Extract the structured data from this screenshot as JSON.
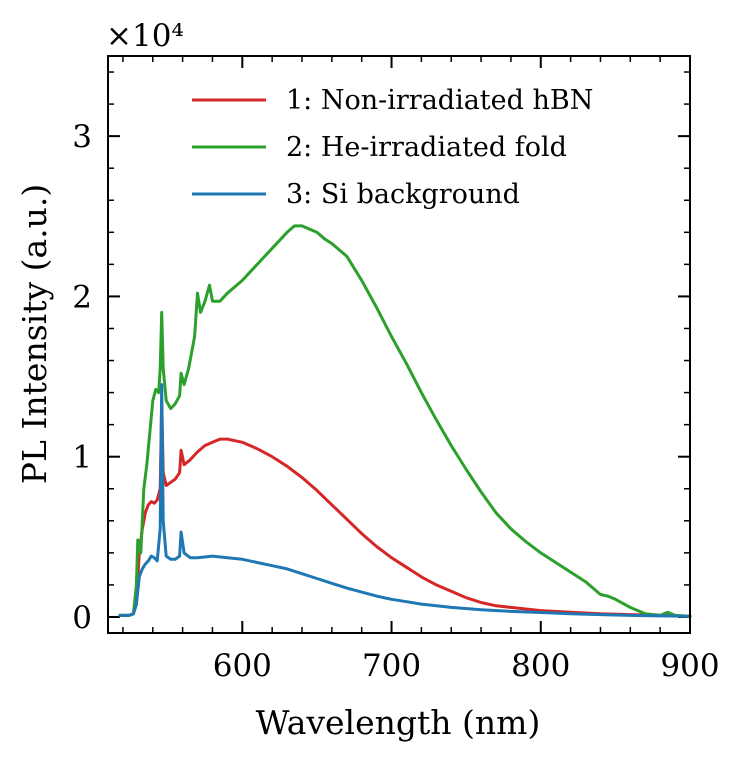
{
  "chart_data": {
    "type": "line",
    "xlabel": "Wavelength (nm)",
    "ylabel": "PL Intensity (a.u.)",
    "multiplier_label": "×10⁴",
    "xlim": [
      510,
      900
    ],
    "ylim": [
      -0.1,
      3.5
    ],
    "x_ticks": [
      600,
      700,
      800,
      900
    ],
    "y_ticks": [
      0,
      1,
      2,
      3
    ],
    "x_minor_step": 20,
    "y_minor_step": 0.2,
    "legend_position": "top-right",
    "series": [
      {
        "name": "1: Non-irradiated hBN",
        "color": "#d62728",
        "points": [
          [
            518,
            0.01
          ],
          [
            524,
            0.01
          ],
          [
            527,
            0.02
          ],
          [
            529,
            0.08
          ],
          [
            531,
            0.4
          ],
          [
            533,
            0.55
          ],
          [
            535,
            0.65
          ],
          [
            537,
            0.7
          ],
          [
            539,
            0.72
          ],
          [
            541,
            0.71
          ],
          [
            543,
            0.73
          ],
          [
            545,
            0.8
          ],
          [
            546,
            1.35
          ],
          [
            547,
            0.9
          ],
          [
            549,
            0.82
          ],
          [
            552,
            0.84
          ],
          [
            555,
            0.86
          ],
          [
            558,
            0.9
          ],
          [
            559,
            1.04
          ],
          [
            561,
            0.95
          ],
          [
            565,
            0.98
          ],
          [
            570,
            1.03
          ],
          [
            575,
            1.07
          ],
          [
            580,
            1.09
          ],
          [
            585,
            1.11
          ],
          [
            590,
            1.11
          ],
          [
            595,
            1.1
          ],
          [
            600,
            1.09
          ],
          [
            610,
            1.05
          ],
          [
            620,
            1.0
          ],
          [
            630,
            0.94
          ],
          [
            640,
            0.87
          ],
          [
            650,
            0.79
          ],
          [
            660,
            0.7
          ],
          [
            670,
            0.61
          ],
          [
            680,
            0.52
          ],
          [
            690,
            0.44
          ],
          [
            700,
            0.37
          ],
          [
            710,
            0.31
          ],
          [
            720,
            0.25
          ],
          [
            730,
            0.2
          ],
          [
            740,
            0.16
          ],
          [
            750,
            0.12
          ],
          [
            760,
            0.09
          ],
          [
            770,
            0.07
          ],
          [
            780,
            0.06
          ],
          [
            790,
            0.05
          ],
          [
            800,
            0.04
          ],
          [
            820,
            0.03
          ],
          [
            840,
            0.02
          ],
          [
            860,
            0.015
          ],
          [
            880,
            0.01
          ],
          [
            900,
            0.005
          ]
        ]
      },
      {
        "name": "2: He-irradiated fold",
        "color": "#2ca02c",
        "points": [
          [
            518,
            0.01
          ],
          [
            524,
            0.01
          ],
          [
            527,
            0.02
          ],
          [
            529,
            0.2
          ],
          [
            530,
            0.48
          ],
          [
            532,
            0.4
          ],
          [
            534,
            0.8
          ],
          [
            536,
            0.95
          ],
          [
            538,
            1.15
          ],
          [
            540,
            1.35
          ],
          [
            542,
            1.42
          ],
          [
            544,
            1.4
          ],
          [
            545,
            1.55
          ],
          [
            546,
            1.9
          ],
          [
            547,
            1.55
          ],
          [
            549,
            1.35
          ],
          [
            552,
            1.3
          ],
          [
            555,
            1.33
          ],
          [
            558,
            1.38
          ],
          [
            559,
            1.52
          ],
          [
            561,
            1.45
          ],
          [
            564,
            1.55
          ],
          [
            568,
            1.75
          ],
          [
            570,
            2.02
          ],
          [
            572,
            1.9
          ],
          [
            575,
            1.97
          ],
          [
            578,
            2.07
          ],
          [
            580,
            1.97
          ],
          [
            585,
            1.97
          ],
          [
            590,
            2.02
          ],
          [
            600,
            2.1
          ],
          [
            610,
            2.2
          ],
          [
            620,
            2.3
          ],
          [
            630,
            2.4
          ],
          [
            635,
            2.44
          ],
          [
            640,
            2.44
          ],
          [
            645,
            2.42
          ],
          [
            650,
            2.4
          ],
          [
            655,
            2.36
          ],
          [
            660,
            2.33
          ],
          [
            670,
            2.25
          ],
          [
            680,
            2.1
          ],
          [
            690,
            1.93
          ],
          [
            700,
            1.75
          ],
          [
            710,
            1.58
          ],
          [
            720,
            1.4
          ],
          [
            730,
            1.23
          ],
          [
            740,
            1.07
          ],
          [
            750,
            0.92
          ],
          [
            760,
            0.78
          ],
          [
            770,
            0.65
          ],
          [
            780,
            0.55
          ],
          [
            790,
            0.47
          ],
          [
            800,
            0.4
          ],
          [
            810,
            0.34
          ],
          [
            820,
            0.28
          ],
          [
            830,
            0.22
          ],
          [
            840,
            0.14
          ],
          [
            845,
            0.13
          ],
          [
            850,
            0.11
          ],
          [
            860,
            0.06
          ],
          [
            870,
            0.02
          ],
          [
            880,
            0.01
          ],
          [
            885,
            0.03
          ],
          [
            890,
            0.01
          ],
          [
            900,
            0.005
          ]
        ]
      },
      {
        "name": "3: Si background",
        "color": "#1f77b4",
        "points": [
          [
            518,
            0.01
          ],
          [
            524,
            0.01
          ],
          [
            527,
            0.02
          ],
          [
            529,
            0.08
          ],
          [
            531,
            0.25
          ],
          [
            533,
            0.3
          ],
          [
            535,
            0.33
          ],
          [
            537,
            0.35
          ],
          [
            539,
            0.38
          ],
          [
            541,
            0.37
          ],
          [
            543,
            0.35
          ],
          [
            545,
            0.55
          ],
          [
            546,
            1.45
          ],
          [
            547,
            0.6
          ],
          [
            549,
            0.38
          ],
          [
            552,
            0.36
          ],
          [
            555,
            0.36
          ],
          [
            558,
            0.38
          ],
          [
            559,
            0.53
          ],
          [
            561,
            0.4
          ],
          [
            565,
            0.37
          ],
          [
            570,
            0.37
          ],
          [
            580,
            0.38
          ],
          [
            590,
            0.37
          ],
          [
            600,
            0.36
          ],
          [
            610,
            0.34
          ],
          [
            620,
            0.32
          ],
          [
            630,
            0.3
          ],
          [
            640,
            0.27
          ],
          [
            650,
            0.24
          ],
          [
            660,
            0.21
          ],
          [
            670,
            0.18
          ],
          [
            680,
            0.155
          ],
          [
            690,
            0.13
          ],
          [
            700,
            0.11
          ],
          [
            710,
            0.095
          ],
          [
            720,
            0.08
          ],
          [
            740,
            0.06
          ],
          [
            760,
            0.045
          ],
          [
            780,
            0.035
          ],
          [
            800,
            0.028
          ],
          [
            820,
            0.02
          ],
          [
            840,
            0.015
          ],
          [
            860,
            0.01
          ],
          [
            880,
            0.007
          ],
          [
            900,
            0.005
          ]
        ]
      }
    ]
  }
}
